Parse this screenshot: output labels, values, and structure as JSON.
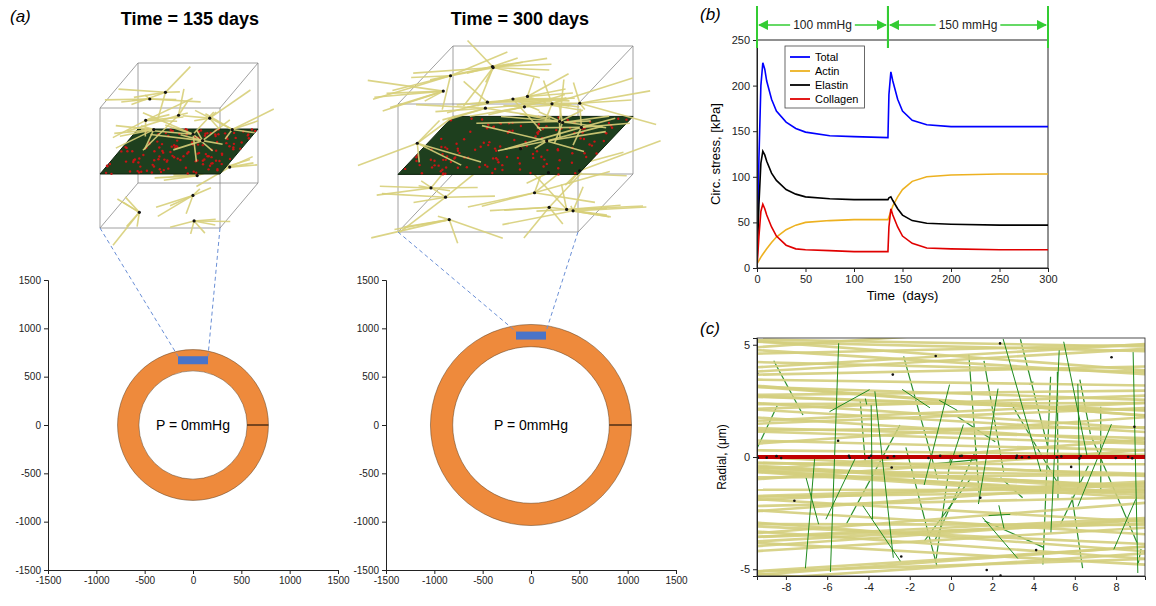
{
  "chart_data": [
    {
      "type": "ring",
      "panel_label": "(a)",
      "title": "Time = 135 days",
      "annotation": "P = 0mmHg",
      "inner_radius": 560,
      "outer_radius": 780,
      "color": "#ee8a3c",
      "xlim": [
        -1500,
        1500
      ],
      "ylim": [
        -1500,
        1500
      ],
      "xticks": [
        -1500,
        -1000,
        -500,
        0,
        500,
        1000,
        1500
      ],
      "yticks": [
        -1500,
        -1000,
        -500,
        0,
        500,
        1000,
        1500
      ]
    },
    {
      "type": "ring",
      "title": "Time = 300 days",
      "annotation": "P = 0mmHg",
      "inner_radius": 810,
      "outer_radius": 1040,
      "color": "#ee8a3c",
      "xlim": [
        -1500,
        1500
      ],
      "ylim": [
        -1500,
        1500
      ],
      "xticks": [
        -1500,
        -1000,
        -500,
        0,
        500,
        1000,
        1500
      ],
      "yticks": [
        -1500,
        -1000,
        -500,
        0,
        500,
        1000,
        1500
      ]
    },
    {
      "type": "line",
      "panel_label": "(b)",
      "xlabel": "Time  (days)",
      "ylabel": "Circ. stress, [kPa]",
      "x": [
        0,
        2,
        4,
        6,
        8,
        10,
        15,
        20,
        30,
        40,
        50,
        75,
        100,
        135,
        136,
        138,
        140,
        145,
        150,
        160,
        175,
        200,
        250,
        300
      ],
      "series": [
        {
          "name": "Total",
          "color": "#0000ff",
          "values": [
            10,
            120,
            200,
            225,
            218,
            205,
            185,
            172,
            160,
            153,
            149,
            145,
            144,
            143,
            190,
            215,
            205,
            185,
            172,
            162,
            157,
            155,
            155,
            155
          ]
        },
        {
          "name": "Actin",
          "color": "#edb120",
          "values": [
            5,
            8,
            12,
            15,
            18,
            21,
            28,
            34,
            42,
            47,
            50,
            52,
            53,
            53,
            56,
            62,
            68,
            78,
            86,
            95,
            100,
            102,
            103,
            103
          ]
        },
        {
          "name": "Elastin",
          "color": "#000000",
          "values": [
            5,
            70,
            115,
            128,
            124,
            117,
            104,
            96,
            86,
            81,
            78,
            76,
            75,
            75,
            77,
            78,
            74,
            65,
            58,
            52,
            49,
            48,
            47,
            47
          ]
        },
        {
          "name": "Collagen",
          "color": "#e00000",
          "values": [
            0,
            35,
            62,
            70,
            65,
            58,
            45,
            35,
            25,
            21,
            20,
            19,
            18,
            18,
            45,
            65,
            58,
            45,
            35,
            27,
            22,
            21,
            20,
            20
          ]
        }
      ],
      "xlim": [
        0,
        300
      ],
      "ylim": [
        0,
        250
      ],
      "xticks": [
        0,
        50,
        100,
        150,
        200,
        250,
        300
      ],
      "yticks": [
        0,
        50,
        100,
        150,
        200,
        250
      ],
      "legend": "upper left",
      "pressure_intervals": [
        {
          "x": [
            0,
            135
          ],
          "text": "100 mmHg",
          "color": "#33cc33"
        },
        {
          "x": [
            135,
            300
          ],
          "text": "150 mmHg",
          "color": "#33cc33"
        }
      ]
    },
    {
      "type": "image",
      "panel_label": "(c)",
      "ylabel": "Radial, (μm)",
      "xlim": [
        -9.4,
        9.4
      ],
      "ylim": [
        -5.3,
        5.3
      ],
      "xticks": [
        -8,
        -6,
        -4,
        -2,
        0,
        2,
        4,
        6,
        8
      ],
      "yticks": [
        -5,
        0,
        5
      ]
    }
  ]
}
